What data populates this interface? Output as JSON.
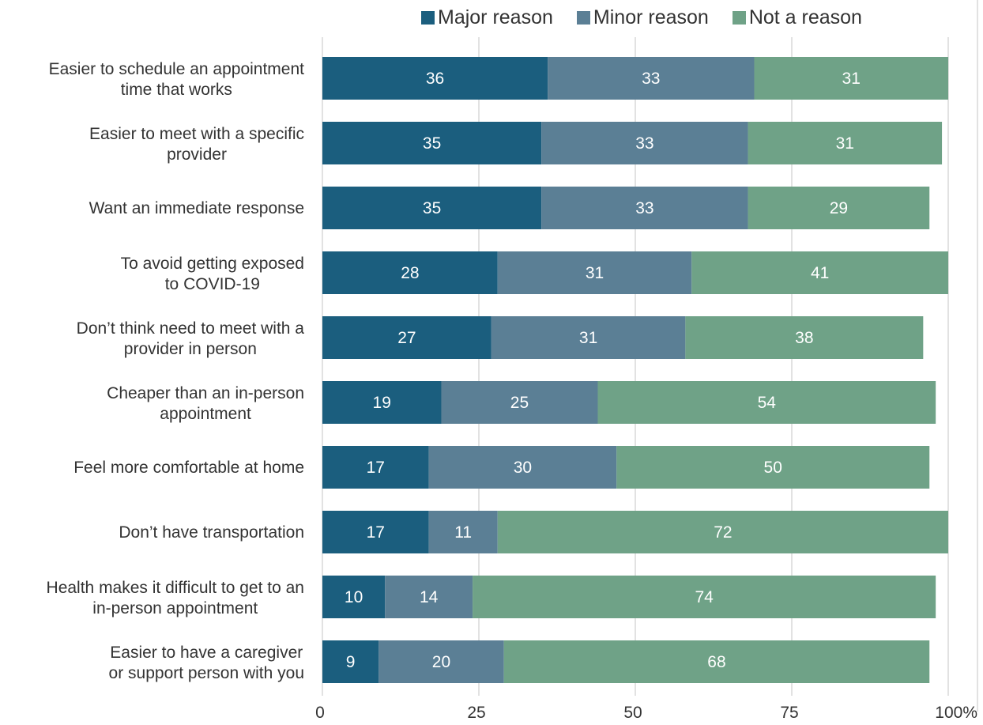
{
  "chart_data": {
    "type": "bar",
    "orientation": "horizontal",
    "stacked": true,
    "categories": [
      [
        "Easier to schedule an appointment",
        "time that works"
      ],
      [
        "Easier to meet with a specific",
        "provider"
      ],
      [
        "Want an immediate response"
      ],
      [
        "To avoid getting exposed",
        "to COVID-19"
      ],
      [
        "Don’t think need to meet with a",
        "provider in person"
      ],
      [
        "Cheaper than an in-person",
        "appointment"
      ],
      [
        "Feel more comfortable at home"
      ],
      [
        "Don’t have transportation"
      ],
      [
        "Health makes it difficult to get to an",
        "in-person appointment"
      ],
      [
        "Easier to have a caregiver",
        "or support person with you"
      ]
    ],
    "series": [
      {
        "name": "Major reason",
        "color": "#1b5e7e",
        "values": [
          36,
          35,
          35,
          28,
          27,
          19,
          17,
          17,
          10,
          9
        ]
      },
      {
        "name": "Minor reason",
        "color": "#5b7f95",
        "values": [
          33,
          33,
          33,
          31,
          31,
          25,
          30,
          11,
          14,
          20
        ]
      },
      {
        "name": "Not a reason",
        "color": "#6fa287",
        "values": [
          31,
          31,
          29,
          41,
          38,
          54,
          50,
          72,
          74,
          68
        ]
      }
    ],
    "xticks": [
      "0",
      "25",
      "50",
      "75",
      "100%"
    ],
    "xlim": [
      0,
      100
    ],
    "grid": "vertical",
    "legend_position": "top",
    "title": "",
    "xlabel": "",
    "ylabel": ""
  }
}
